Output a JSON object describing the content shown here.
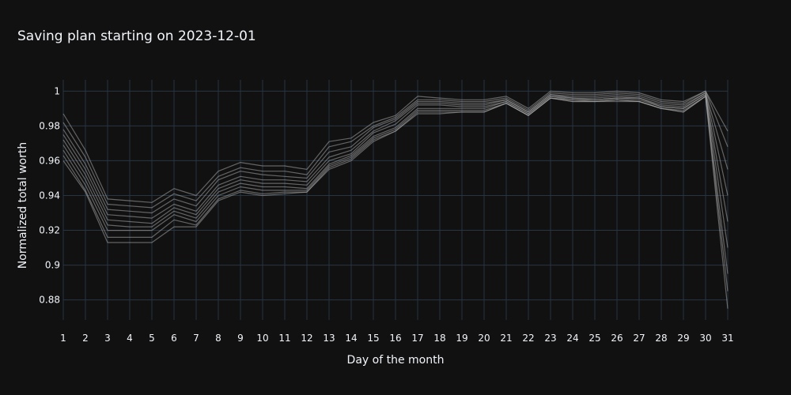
{
  "chart_data": {
    "type": "line",
    "title": "Saving plan starting on 2023-12-01",
    "xlabel": "Day of the month",
    "ylabel": "Normalized total worth",
    "x": [
      1,
      2,
      3,
      4,
      5,
      6,
      7,
      8,
      9,
      10,
      11,
      12,
      13,
      14,
      15,
      16,
      17,
      18,
      19,
      20,
      21,
      22,
      23,
      24,
      25,
      26,
      27,
      28,
      29,
      30,
      31
    ],
    "x_ticks": [
      "1",
      "2",
      "3",
      "4",
      "5",
      "6",
      "7",
      "8",
      "9",
      "10",
      "11",
      "12",
      "13",
      "14",
      "15",
      "16",
      "17",
      "18",
      "19",
      "20",
      "21",
      "22",
      "23",
      "24",
      "25",
      "26",
      "27",
      "28",
      "29",
      "30",
      "31"
    ],
    "y_ticks": [
      "0.88",
      "0.9",
      "0.92",
      "0.94",
      "0.96",
      "0.98",
      "1"
    ],
    "y_tick_values": [
      0.88,
      0.9,
      0.92,
      0.94,
      0.96,
      0.98,
      1.0
    ],
    "xlim": [
      1,
      31
    ],
    "ylim": [
      0.8685,
      1.0065
    ],
    "grid": true,
    "series_color": "#aaaaaa",
    "series": [
      {
        "values": [
          0.987,
          0.966,
          0.938,
          0.937,
          0.936,
          0.944,
          0.94,
          0.954,
          0.959,
          0.957,
          0.957,
          0.955,
          0.971,
          0.973,
          0.982,
          0.986,
          0.997,
          0.996,
          0.995,
          0.995,
          0.997,
          0.99,
          1.0,
          0.999,
          0.999,
          1.0,
          0.999,
          0.995,
          0.994,
          1.0,
          0.977
        ]
      },
      {
        "values": [
          0.982,
          0.962,
          0.935,
          0.934,
          0.933,
          0.941,
          0.937,
          0.951,
          0.956,
          0.954,
          0.954,
          0.952,
          0.968,
          0.971,
          0.98,
          0.985,
          0.995,
          0.995,
          0.994,
          0.994,
          0.996,
          0.989,
          0.999,
          0.998,
          0.998,
          0.999,
          0.998,
          0.994,
          0.993,
          1.0,
          0.968
        ]
      },
      {
        "values": [
          0.978,
          0.958,
          0.932,
          0.931,
          0.93,
          0.938,
          0.934,
          0.949,
          0.954,
          0.952,
          0.951,
          0.95,
          0.965,
          0.968,
          0.979,
          0.984,
          0.994,
          0.994,
          0.993,
          0.993,
          0.995,
          0.988,
          0.998,
          0.997,
          0.997,
          0.998,
          0.997,
          0.993,
          0.992,
          0.999,
          0.955
        ]
      },
      {
        "values": [
          0.975,
          0.955,
          0.929,
          0.928,
          0.927,
          0.935,
          0.931,
          0.946,
          0.951,
          0.949,
          0.949,
          0.948,
          0.962,
          0.966,
          0.977,
          0.983,
          0.993,
          0.993,
          0.992,
          0.992,
          0.995,
          0.988,
          0.998,
          0.996,
          0.996,
          0.997,
          0.996,
          0.992,
          0.991,
          0.999,
          0.94
        ]
      },
      {
        "values": [
          0.972,
          0.952,
          0.926,
          0.925,
          0.924,
          0.933,
          0.929,
          0.944,
          0.949,
          0.947,
          0.947,
          0.946,
          0.96,
          0.964,
          0.976,
          0.981,
          0.992,
          0.992,
          0.991,
          0.991,
          0.994,
          0.987,
          0.997,
          0.996,
          0.995,
          0.996,
          0.996,
          0.991,
          0.99,
          0.998,
          0.925
        ]
      },
      {
        "values": [
          0.969,
          0.949,
          0.923,
          0.922,
          0.922,
          0.931,
          0.927,
          0.942,
          0.947,
          0.945,
          0.945,
          0.944,
          0.958,
          0.963,
          0.974,
          0.979,
          0.99,
          0.99,
          0.99,
          0.99,
          0.994,
          0.987,
          0.997,
          0.995,
          0.995,
          0.996,
          0.995,
          0.991,
          0.99,
          0.998,
          0.91
        ]
      },
      {
        "values": [
          0.966,
          0.946,
          0.92,
          0.92,
          0.92,
          0.929,
          0.925,
          0.94,
          0.945,
          0.943,
          0.943,
          0.943,
          0.957,
          0.962,
          0.973,
          0.978,
          0.989,
          0.989,
          0.989,
          0.989,
          0.993,
          0.986,
          0.996,
          0.995,
          0.994,
          0.995,
          0.994,
          0.99,
          0.989,
          0.997,
          0.895
        ]
      },
      {
        "values": [
          0.963,
          0.943,
          0.916,
          0.916,
          0.916,
          0.926,
          0.923,
          0.938,
          0.943,
          0.941,
          0.942,
          0.942,
          0.956,
          0.961,
          0.972,
          0.977,
          0.988,
          0.988,
          0.988,
          0.988,
          0.993,
          0.986,
          0.996,
          0.994,
          0.994,
          0.995,
          0.994,
          0.99,
          0.988,
          0.997,
          0.885
        ]
      },
      {
        "values": [
          0.96,
          0.942,
          0.913,
          0.913,
          0.913,
          0.922,
          0.922,
          0.937,
          0.942,
          0.94,
          0.941,
          0.942,
          0.955,
          0.96,
          0.971,
          0.977,
          0.987,
          0.987,
          0.988,
          0.988,
          0.993,
          0.986,
          0.996,
          0.994,
          0.994,
          0.994,
          0.994,
          0.99,
          0.988,
          0.997,
          0.875
        ]
      }
    ]
  }
}
